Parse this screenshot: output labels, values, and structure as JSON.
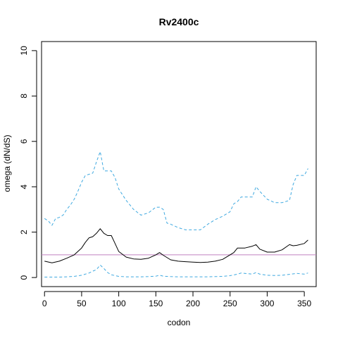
{
  "chart_data": {
    "type": "line",
    "title": "Rv2400c",
    "xlabel": "codon",
    "ylabel": "omega (dN/dS)",
    "xlim": [
      -4,
      366
    ],
    "ylim": [
      -0.4,
      10.4
    ],
    "xticks": [
      0,
      50,
      100,
      150,
      200,
      250,
      300,
      350
    ],
    "yticks": [
      0,
      2,
      4,
      6,
      8,
      10
    ],
    "grid": false,
    "reference_line": {
      "y": 1,
      "color": "#c080c0"
    },
    "series": [
      {
        "style": "solid",
        "color": "#000000",
        "x": [
          0,
          10,
          20,
          30,
          40,
          50,
          55,
          60,
          65,
          70,
          75,
          80,
          85,
          90,
          95,
          100,
          110,
          120,
          130,
          140,
          150,
          155,
          160,
          170,
          180,
          190,
          200,
          210,
          220,
          230,
          240,
          250,
          255,
          260,
          265,
          270,
          280,
          285,
          290,
          300,
          310,
          320,
          330,
          335,
          340,
          350,
          355
        ],
        "y": [
          0.72,
          0.65,
          0.72,
          0.85,
          1.0,
          1.3,
          1.55,
          1.75,
          1.8,
          1.95,
          2.15,
          1.95,
          1.85,
          1.85,
          1.5,
          1.15,
          0.9,
          0.82,
          0.8,
          0.85,
          1.0,
          1.1,
          0.98,
          0.78,
          0.72,
          0.7,
          0.68,
          0.66,
          0.68,
          0.72,
          0.8,
          1.0,
          1.1,
          1.3,
          1.3,
          1.3,
          1.38,
          1.45,
          1.25,
          1.12,
          1.12,
          1.22,
          1.45,
          1.4,
          1.42,
          1.5,
          1.65
        ]
      },
      {
        "style": "dashed",
        "color": "#3fa9e0",
        "x": [
          0,
          5,
          10,
          15,
          20,
          25,
          30,
          35,
          40,
          45,
          50,
          55,
          60,
          65,
          70,
          75,
          80,
          85,
          90,
          95,
          100,
          110,
          120,
          130,
          140,
          150,
          155,
          160,
          165,
          170,
          180,
          190,
          200,
          210,
          220,
          230,
          240,
          250,
          255,
          260,
          265,
          270,
          280,
          285,
          290,
          300,
          310,
          320,
          330,
          335,
          340,
          350,
          355
        ],
        "y": [
          2.6,
          2.5,
          2.3,
          2.6,
          2.65,
          2.75,
          3.0,
          3.2,
          3.45,
          3.8,
          4.2,
          4.5,
          4.55,
          4.6,
          5.1,
          5.55,
          4.7,
          4.7,
          4.7,
          4.4,
          3.9,
          3.4,
          3.0,
          2.75,
          2.85,
          3.1,
          3.1,
          3.0,
          2.4,
          2.35,
          2.2,
          2.1,
          2.1,
          2.1,
          2.35,
          2.55,
          2.7,
          2.9,
          3.25,
          3.35,
          3.55,
          3.55,
          3.55,
          4.0,
          3.8,
          3.45,
          3.3,
          3.3,
          3.4,
          4.1,
          4.5,
          4.5,
          4.8
        ]
      },
      {
        "style": "dashed",
        "color": "#3fa9e0",
        "x": [
          0,
          10,
          20,
          30,
          40,
          50,
          60,
          65,
          70,
          75,
          80,
          85,
          90,
          100,
          110,
          120,
          130,
          140,
          150,
          155,
          160,
          170,
          180,
          190,
          200,
          210,
          220,
          230,
          240,
          250,
          260,
          265,
          270,
          280,
          285,
          290,
          300,
          310,
          320,
          330,
          340,
          350,
          355
        ],
        "y": [
          0.02,
          0.02,
          0.02,
          0.03,
          0.05,
          0.1,
          0.2,
          0.28,
          0.35,
          0.55,
          0.4,
          0.22,
          0.12,
          0.05,
          0.03,
          0.03,
          0.03,
          0.04,
          0.06,
          0.1,
          0.06,
          0.04,
          0.03,
          0.03,
          0.03,
          0.03,
          0.03,
          0.04,
          0.05,
          0.08,
          0.15,
          0.2,
          0.18,
          0.15,
          0.22,
          0.15,
          0.1,
          0.09,
          0.1,
          0.14,
          0.18,
          0.15,
          0.2
        ]
      }
    ]
  }
}
